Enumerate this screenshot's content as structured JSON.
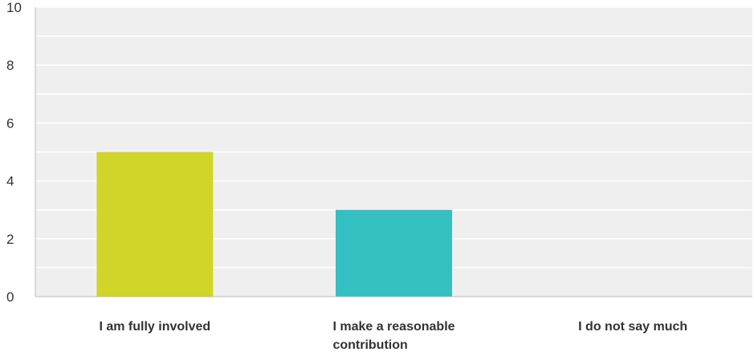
{
  "chart_data": {
    "type": "bar",
    "categories": [
      [
        "I am fully involved"
      ],
      [
        "I make a reasonable",
        "contribution"
      ],
      [
        "I do not say much"
      ]
    ],
    "values": [
      5,
      3,
      0
    ],
    "colors": [
      "#d1d52a",
      "#34bfc0",
      "#f05d4d"
    ],
    "ylim": [
      0,
      10
    ],
    "yticks": [
      0,
      2,
      4,
      6,
      8,
      10
    ],
    "grid": true,
    "background": "#efefef",
    "gridline_color": "#ffffff",
    "axis_color": "#bbbbbb"
  }
}
